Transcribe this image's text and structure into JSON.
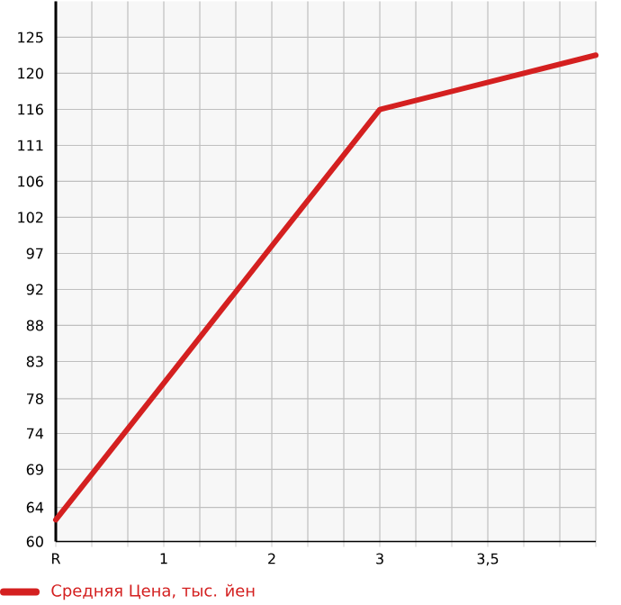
{
  "chart_data": {
    "type": "line",
    "categories": [
      "R",
      "1",
      "2",
      "3",
      "3,5",
      null
    ],
    "series": [
      {
        "name": "Средняя Цена, тыс. йен",
        "color": "#d42020",
        "values": [
          62.8,
          80.4,
          98.1,
          115.7,
          119.2,
          122.7
        ]
      }
    ],
    "ylim": [
      60,
      129.64
    ],
    "yticks": [
      60,
      {
        "value": 64.4,
        "label": "64"
      },
      {
        "value": 69.29,
        "label": "69"
      },
      {
        "value": 73.93,
        "label": "74"
      },
      {
        "value": 78.4,
        "label": "78"
      },
      {
        "value": 83.21,
        "label": "83"
      },
      {
        "value": 87.86,
        "label": "88"
      },
      {
        "value": 92.5,
        "label": "92"
      },
      {
        "value": 97.14,
        "label": "97"
      },
      {
        "value": 101.79,
        "label": "102"
      },
      {
        "value": 106.43,
        "label": "106"
      },
      {
        "value": 111.07,
        "label": "111"
      },
      {
        "value": 115.71,
        "label": "116"
      },
      {
        "value": 120.36,
        "label": "120"
      },
      125
    ],
    "grid": true,
    "legend": "bottom left",
    "marker": "none",
    "line_style": "solid"
  }
}
